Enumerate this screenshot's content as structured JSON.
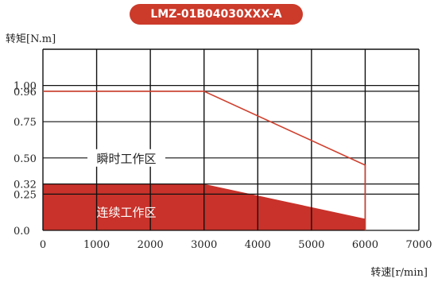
{
  "chart_data": {
    "type": "area",
    "title": "LMZ-01B04030XXX-A",
    "xlabel": "转速[r/min]",
    "ylabel": "转矩[N.m]",
    "xlim": [
      0,
      7000
    ],
    "ylim": [
      0,
      1.25
    ],
    "x_ticks": [
      "0",
      "1000",
      "2000",
      "3000",
      "4000",
      "5000",
      "6000",
      "7000"
    ],
    "y_ticks": [
      {
        "label": "0.0",
        "value": 0
      },
      {
        "label": "0.25",
        "value": 0.25
      },
      {
        "label": "0.32",
        "value": 0.32
      },
      {
        "label": "0.50",
        "value": 0.5
      },
      {
        "label": "0.75",
        "value": 0.75
      },
      {
        "label": "0.96",
        "value": 0.96
      },
      {
        "label": "1.00",
        "value": 1.0
      }
    ],
    "grid": true,
    "series": [
      {
        "name": "瞬时工作区",
        "x": [
          0,
          3000,
          6000,
          6000
        ],
        "y": [
          0.96,
          0.96,
          0.45,
          0
        ]
      },
      {
        "name": "连续工作区",
        "x": [
          0,
          3000,
          6000,
          6000
        ],
        "y": [
          0.32,
          0.32,
          0.08,
          0
        ]
      }
    ],
    "colors": {
      "line": "#d0402e",
      "fill": "#c8322a",
      "grid": "#111111"
    }
  }
}
